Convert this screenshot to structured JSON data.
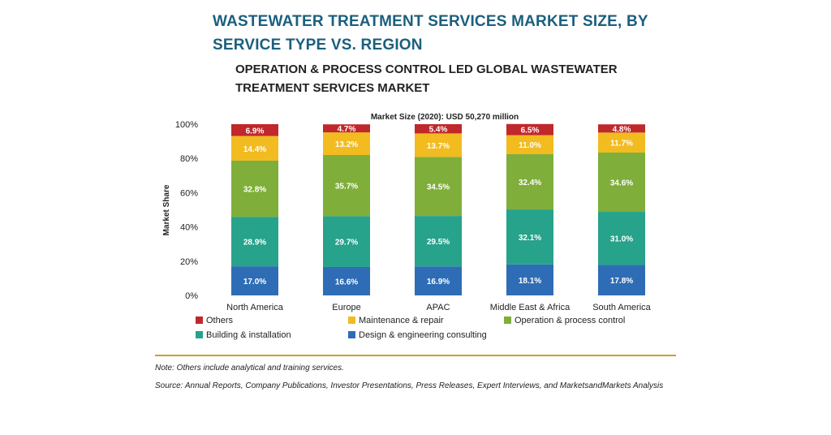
{
  "header": {
    "title": "WASTEWATER TREATMENT SERVICES MARKET SIZE, BY SERVICE TYPE VS. REGION",
    "subtitle": "OPERATION & PROCESS CONTROL LED GLOBAL WASTEWATER TREATMENT SERVICES MARKET"
  },
  "footer": {
    "note": "Note: Others include analytical and training services.",
    "source": "Source: Annual Reports, Company Publications, Investor Presentations, Press Releases, Expert Interviews, and MarketsandMarkets Analysis"
  },
  "chart_data": {
    "type": "bar",
    "stacked": true,
    "title": "Market Size (2020): USD 50,270 million",
    "xlabel": "",
    "ylabel": "Market Share",
    "ylim": [
      0,
      100
    ],
    "yticks": [
      "0%",
      "20%",
      "40%",
      "60%",
      "80%",
      "100%"
    ],
    "grid": false,
    "legend": "bottom",
    "categories": [
      "North America",
      "Europe",
      "APAC",
      "Middle East & Africa",
      "South America"
    ],
    "series": [
      {
        "name": "Design & engineering consulting",
        "color": "#2e6db5",
        "values": [
          17.0,
          16.6,
          16.9,
          18.1,
          17.8
        ],
        "labels": [
          "17.0%",
          "16.6%",
          "16.9%",
          "18.1%",
          "17.8%"
        ]
      },
      {
        "name": "Building & installation",
        "color": "#27a28b",
        "values": [
          28.9,
          29.7,
          29.5,
          32.1,
          31.0
        ],
        "labels": [
          "28.9%",
          "29.7%",
          "29.5%",
          "32.1%",
          "31.0%"
        ]
      },
      {
        "name": "Operation & process control",
        "color": "#7fae3a",
        "values": [
          32.8,
          35.7,
          34.5,
          32.4,
          34.6
        ],
        "labels": [
          "32.8%",
          "35.7%",
          "34.5%",
          "32.4%",
          "34.6%"
        ]
      },
      {
        "name": "Maintenance & repair",
        "color": "#f2bb1f",
        "values": [
          14.4,
          13.2,
          13.7,
          11.0,
          11.7
        ],
        "labels": [
          "14.4%",
          "13.2%",
          "13.7%",
          "11.0%",
          "11.7%"
        ]
      },
      {
        "name": "Others",
        "color": "#c0282c",
        "values": [
          6.9,
          4.7,
          5.4,
          6.5,
          4.8
        ],
        "labels": [
          "6.9%",
          "4.7%",
          "5.4%",
          "6.5%",
          "4.8%"
        ]
      }
    ],
    "legend_order": [
      "Others",
      "Maintenance & repair",
      "Operation & process control",
      "Building & installation",
      "Design & engineering consulting"
    ]
  },
  "colors": {
    "title": "#1b5f7e",
    "divider": "#c9a227"
  }
}
